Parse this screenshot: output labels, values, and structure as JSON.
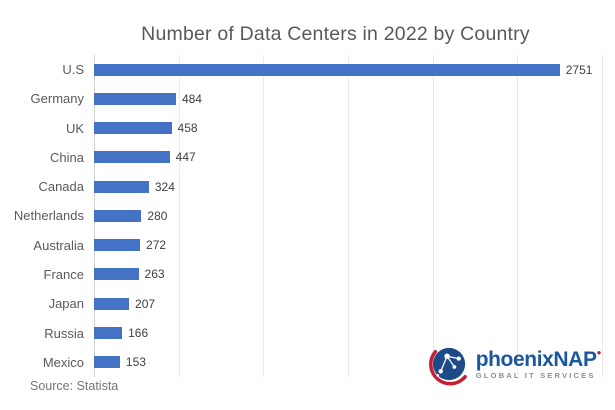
{
  "title": "Number of Data Centers in 2022 by Country",
  "source_note": "Source: Statista",
  "logo": {
    "icon": "globe-network-icon",
    "wordmark_prefix": "phoenix",
    "wordmark_suffix": "NAP",
    "trademark_mark": "●",
    "tagline": "GLOBAL IT SERVICES",
    "colors": {
      "brand_blue": "#1A57A0",
      "brand_red": "#C42033",
      "tagline_gray": "#8C8F91",
      "globe_navy": "#1E4B87"
    }
  },
  "chart_data": {
    "type": "bar",
    "orientation": "horizontal",
    "title": "Number of Data Centers in 2022 by Country",
    "categories": [
      "U.S",
      "Germany",
      "UK",
      "China",
      "Canada",
      "Netherlands",
      "Australia",
      "France",
      "Japan",
      "Russia",
      "Mexico"
    ],
    "values": [
      2751,
      484,
      458,
      447,
      324,
      280,
      272,
      263,
      207,
      166,
      153
    ],
    "xlabel": "",
    "ylabel": "",
    "xlim": [
      0,
      3030
    ],
    "gridline_interval": 500,
    "grid": true,
    "legend": false,
    "value_labels": true,
    "colors": {
      "bar": "#4472C4",
      "gridline": "#E9E9E9",
      "axis_line": "#D2D2D2",
      "category_label": "#5A5A5A",
      "value_label": "#3F3F3F",
      "title": "#58595B"
    }
  }
}
